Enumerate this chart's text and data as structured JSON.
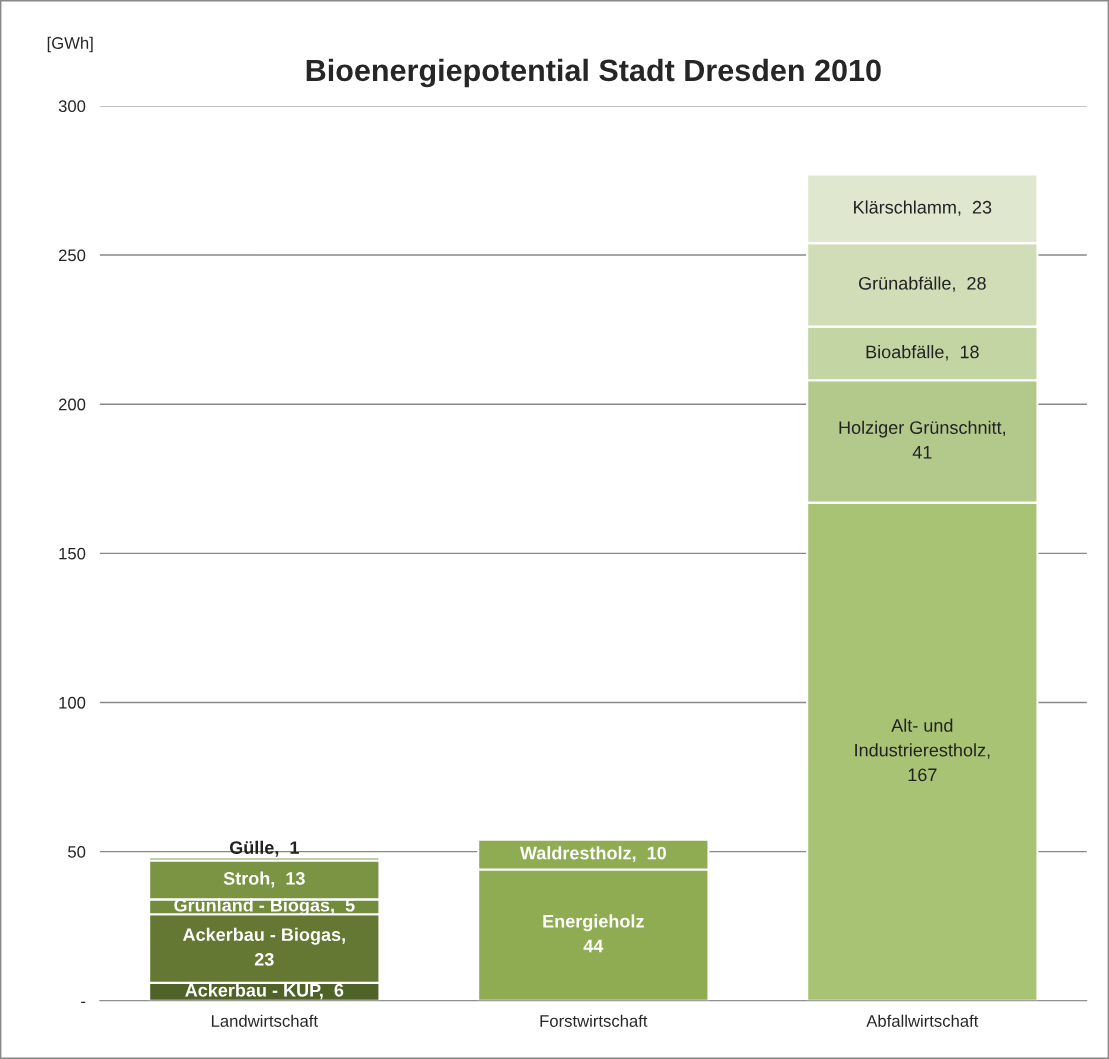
{
  "chart_data": {
    "type": "bar",
    "title": "Bioenergiepotential Stadt Dresden 2010",
    "ylabel": "[GWh]",
    "categories": [
      "Landwirtschaft",
      "Forstwirtschaft",
      "Abfallwirtschaft"
    ],
    "stacked": true,
    "ylim": [
      0,
      300
    ],
    "yticks": [
      {
        "value": 0,
        "label": "-"
      },
      50,
      100,
      150,
      200,
      250,
      300
    ],
    "grid": "y",
    "legend": false,
    "series": [
      {
        "color": "#4f6228",
        "values": [
          6,
          null,
          null
        ],
        "value_labels": [
          "Ackerbau - KUP,  6",
          null,
          null
        ]
      },
      {
        "color": "#647834",
        "values": [
          23,
          null,
          null
        ],
        "value_labels": [
          "Ackerbau - Biogas,\n23",
          null,
          null
        ]
      },
      {
        "color": "#728c3c",
        "values": [
          5,
          null,
          null
        ],
        "value_labels": [
          "Grünland - Biogas,  5",
          null,
          null
        ]
      },
      {
        "color": "#7a9444",
        "values": [
          13,
          null,
          null
        ],
        "value_labels": [
          "Stroh,  13",
          null,
          null
        ]
      },
      {
        "color": "#829c4c",
        "values": [
          1,
          null,
          null
        ],
        "value_labels": [
          "Gülle,  1",
          null,
          null
        ]
      },
      {
        "color": "#8fac52",
        "values": [
          null,
          44,
          null
        ],
        "value_labels": [
          null,
          "Energieholz\n44",
          null
        ]
      },
      {
        "color": "#8fac52",
        "values": [
          null,
          10,
          null
        ],
        "value_labels": [
          null,
          "Waldrestholz,  10",
          null
        ]
      },
      {
        "color": "#a8c373",
        "values": [
          null,
          null,
          167
        ],
        "value_labels": [
          null,
          null,
          "Alt- und\nIndustrierestholz,\n167"
        ]
      },
      {
        "color": "#b3c98c",
        "values": [
          null,
          null,
          41
        ],
        "value_labels": [
          null,
          null,
          "Holziger Grünschnitt,\n41"
        ]
      },
      {
        "color": "#c3d5a2",
        "values": [
          null,
          null,
          18
        ],
        "value_labels": [
          null,
          null,
          "Bioabfälle,  18"
        ]
      },
      {
        "color": "#d0ddb7",
        "values": [
          null,
          null,
          28
        ],
        "value_labels": [
          null,
          null,
          "Grünabfälle,  28"
        ]
      },
      {
        "color": "#dfe8cf",
        "values": [
          null,
          null,
          23
        ],
        "value_labels": [
          null,
          null,
          "Klärschlamm,  23"
        ]
      }
    ]
  }
}
